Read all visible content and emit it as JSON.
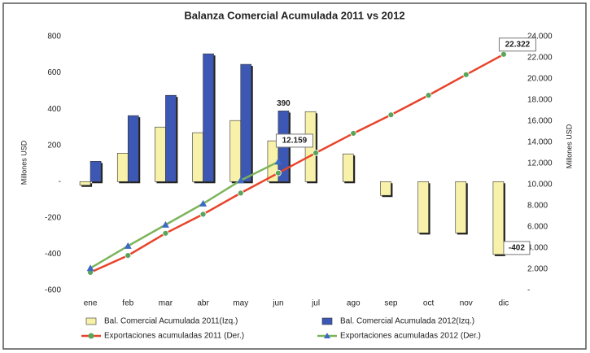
{
  "chart_data": {
    "type": "bar-line",
    "title": "Balanza Comercial Acumulada 2011 vs 2012",
    "y_label": "Millones USD",
    "y2_label": "Millones USD",
    "categories": [
      "ene",
      "feb",
      "mar",
      "abr",
      "may",
      "jun",
      "jul",
      "ago",
      "sep",
      "oct",
      "nov",
      "dic"
    ],
    "ylim": [
      -600,
      800
    ],
    "yticks": [
      -600,
      -400,
      -200,
      {
        "value": 0,
        "label": "-"
      },
      200,
      400,
      600,
      800
    ],
    "y2lim": [
      0,
      24000
    ],
    "y2ticks": [
      {
        "value": 0,
        "label": "-"
      },
      {
        "value": 2000,
        "label": "2.000"
      },
      {
        "value": 4000,
        "label": "4.000"
      },
      {
        "value": 6000,
        "label": "6.000"
      },
      {
        "value": 8000,
        "label": "8.000"
      },
      {
        "value": 10000,
        "label": "10.000"
      },
      {
        "value": 12000,
        "label": "12.000"
      },
      {
        "value": 14000,
        "label": "14.000"
      },
      {
        "value": 16000,
        "label": "16.000"
      },
      {
        "value": 18000,
        "label": "18.000"
      },
      {
        "value": 20000,
        "label": "20.000"
      },
      {
        "value": 22000,
        "label": "22.000"
      },
      {
        "value": 24000,
        "label": "24.000"
      }
    ],
    "grid": false,
    "legend": "bottom",
    "series": [
      {
        "name": "Bal. Comercial Acumulada 2011(Izq.)",
        "type": "bar",
        "color": "#f7f1aa",
        "values": [
          -20,
          157,
          301,
          270,
          337,
          225,
          386,
          153,
          -76,
          -283,
          -283,
          -402
        ],
        "value_labels": [
          null,
          null,
          null,
          null,
          null,
          null,
          null,
          null,
          null,
          null,
          null,
          "-402"
        ]
      },
      {
        "name": "Bal. Comercial Acumulada 2012(Izq.)",
        "type": "bar",
        "color": "#3c58b4",
        "values": [
          112,
          364,
          476,
          705,
          647,
          390,
          null,
          null,
          null,
          null,
          null,
          null
        ],
        "value_labels": [
          null,
          null,
          null,
          null,
          null,
          "390",
          null,
          null,
          null,
          null,
          null,
          null
        ]
      },
      {
        "name": "Exportaciones acumuladas 2011 (Der.)",
        "type": "line",
        "axis": "y2",
        "color": "#e8442a",
        "marker_color": "#5aa55a",
        "values": [
          1700,
          3300,
          5400,
          7200,
          9200,
          11100,
          13000,
          14850,
          16600,
          18450,
          20400,
          22322
        ],
        "value_labels": [
          null,
          null,
          null,
          null,
          null,
          null,
          null,
          null,
          null,
          null,
          null,
          "22.322"
        ]
      },
      {
        "name": "Exportaciones acumuladas 2012 (Der.)",
        "type": "line",
        "axis": "y2",
        "color": "#7cb45a",
        "marker_color": "#3c6ac4",
        "values": [
          2100,
          4200,
          6200,
          8200,
          10400,
          12159,
          null,
          null,
          null,
          null,
          null,
          null
        ],
        "value_labels": [
          null,
          null,
          null,
          null,
          null,
          "12.159",
          null,
          null,
          null,
          null,
          null,
          null
        ]
      }
    ]
  }
}
